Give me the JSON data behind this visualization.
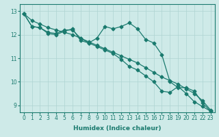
{
  "xlabel": "Humidex (Indice chaleur)",
  "ylabel": "",
  "bg_color": "#ceeae8",
  "grid_color": "#aed4d2",
  "line_color": "#1a7a6e",
  "xlim": [
    -0.5,
    23.5
  ],
  "ylim": [
    8.7,
    13.3
  ],
  "yticks": [
    9,
    10,
    11,
    12,
    13
  ],
  "xticks": [
    0,
    1,
    2,
    3,
    4,
    5,
    6,
    7,
    8,
    9,
    10,
    11,
    12,
    13,
    14,
    15,
    16,
    17,
    18,
    19,
    20,
    21,
    22,
    23
  ],
  "line1_x": [
    0,
    1,
    2,
    3,
    4,
    5,
    6,
    7,
    8,
    9,
    10,
    11,
    12,
    13,
    14,
    15,
    16,
    17,
    18,
    19,
    20,
    21,
    22,
    23
  ],
  "line1_y": [
    12.9,
    12.6,
    12.45,
    12.3,
    12.2,
    12.1,
    12.0,
    11.85,
    11.7,
    11.55,
    11.4,
    11.25,
    11.1,
    10.95,
    10.8,
    10.6,
    10.4,
    10.2,
    10.05,
    9.9,
    9.7,
    9.5,
    9.2,
    8.8
  ],
  "line2_x": [
    0,
    1,
    2,
    3,
    4,
    5,
    6,
    7,
    8,
    9,
    10,
    11,
    12,
    13,
    14,
    15,
    16,
    17,
    18,
    19,
    20,
    21,
    22,
    23
  ],
  "line2_y": [
    12.9,
    12.35,
    12.3,
    12.1,
    12.05,
    12.2,
    12.2,
    11.85,
    11.65,
    11.85,
    12.35,
    12.25,
    12.35,
    12.5,
    12.25,
    11.8,
    11.65,
    11.15,
    10.0,
    9.75,
    9.75,
    9.6,
    9.1,
    8.75
  ],
  "line3_x": [
    0,
    1,
    2,
    3,
    4,
    5,
    6,
    7,
    8,
    9,
    10,
    11,
    12,
    13,
    14,
    15,
    16,
    17,
    18,
    19,
    20,
    21,
    22,
    23
  ],
  "line3_y": [
    12.9,
    12.35,
    12.3,
    12.05,
    12.0,
    12.15,
    12.25,
    11.75,
    11.65,
    11.5,
    11.35,
    11.2,
    10.95,
    10.65,
    10.5,
    10.25,
    10.0,
    9.6,
    9.55,
    9.8,
    9.5,
    9.15,
    8.95,
    8.75
  ],
  "marker_size": 2.5,
  "linewidth": 0.9,
  "tick_fontsize": 5.5,
  "label_fontsize": 6.5
}
